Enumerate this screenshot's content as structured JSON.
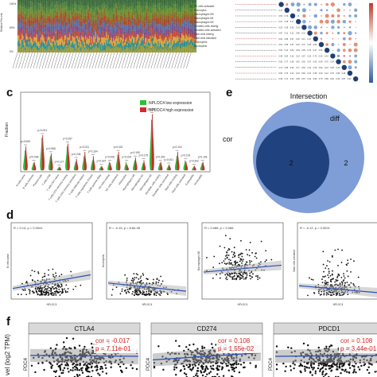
{
  "panels": {
    "c": "c",
    "d": "d",
    "e": "e",
    "f": "f"
  },
  "panel_a": {
    "ylabel": "Relative Percent",
    "ticks": [
      "100%",
      "50%",
      "0%"
    ],
    "legend": [
      "NK cells activated",
      "Monocytes",
      "Macrophages M0",
      "Macrophages M1",
      "Macrophages M2",
      "Dendritic cells resting",
      "Dendritic cells activated",
      "Mast cells resting",
      "Mast cells activated",
      "Eosinophils",
      "Neutrophils"
    ],
    "stack_colors": [
      "#3c6b3a",
      "#4a7f3e",
      "#6b8f2f",
      "#8c6b2a",
      "#a64a2a",
      "#5a6fa0",
      "#7a4f8a",
      "#c04a3a",
      "#d9a23a",
      "#2f8f8f",
      "#9a9a3a"
    ]
  },
  "panel_c": {
    "ylabel": "Fraction",
    "legend": [
      "NPLOC4 low expression",
      "NPLOC4 high expression"
    ],
    "legend_colors": [
      "#2fbf2f",
      "#d42a2a"
    ],
    "pvalues": [
      "p=0.005",
      "p=0.946",
      "p=0.001",
      "p=0.968",
      "p=0.127",
      "p=0.297",
      "p=0.246",
      "p=0.021",
      "p=0.164",
      "p=0.187",
      "p=0.008",
      "p=0.001",
      "p=0.024",
      "p=0.199",
      "p=0.175",
      "p=0.209",
      "p=0.302",
      "p=0.001",
      "p=0.104",
      "p=0.100",
      "p=0.302",
      "p=0.106"
    ],
    "categories": [
      "B cells naive",
      "B cells memory",
      "Plasma cells",
      "T cells CD8",
      "T cells CD4 naive",
      "T cells CD4 memory resting",
      "T cells CD4 memory activated",
      "T cells follicular helper",
      "T cells regulatory (Tregs)",
      "T cells gamma delta",
      "NK cells resting",
      "NK cells activated",
      "Monocytes",
      "Macrophages M0",
      "Macrophages M1",
      "Macrophages M2",
      "Dendritic cells resting",
      "Dendritic cells activated",
      "Mast cells resting",
      "Mast cells activated",
      "Eosinophils",
      "Neutrophils"
    ],
    "low_heights": [
      0.28,
      0.1,
      0.46,
      0.2,
      0.04,
      0.34,
      0.12,
      0.2,
      0.14,
      0.05,
      0.12,
      0.22,
      0.12,
      0.14,
      0.1,
      0.72,
      0.1,
      0.06,
      0.2,
      0.14,
      0.05,
      0.1
    ],
    "high_heights": [
      0.34,
      0.12,
      0.5,
      0.24,
      0.05,
      0.38,
      0.16,
      0.26,
      0.2,
      0.06,
      0.1,
      0.26,
      0.08,
      0.18,
      0.14,
      0.8,
      0.12,
      0.08,
      0.26,
      0.12,
      0.06,
      0.12
    ]
  },
  "panel_e": {
    "title": "Intersection",
    "outer_label": "cor",
    "inner_label": "diff",
    "inner_count": "2",
    "outer_count": "2",
    "outer_color": "#7f9dd6",
    "inner_color": "#20427f"
  },
  "panel_d": {
    "xlabel": "NPLOC4",
    "plots": [
      {
        "stat": "R = 0.14, p = 0.0041",
        "ylabel": "B cells naive",
        "trend": [
          0.12,
          0.32
        ]
      },
      {
        "stat": "R = -0.15, p = 6.6e-05",
        "ylabel": "Neutrophils",
        "trend": [
          0.2,
          0.08
        ]
      },
      {
        "stat": "R = 0.086, p = 0.066",
        "ylabel": "Macrophages M0",
        "trend": [
          0.36,
          0.46
        ]
      },
      {
        "stat": "R = -0.12, p = 0.0021",
        "ylabel": "Mast cells activated",
        "trend": [
          0.16,
          0.06
        ]
      }
    ],
    "line_color": "#2b4fb3",
    "band_color": "#b8b8b8"
  },
  "panel_f": {
    "ylabel": "vel (log2 TPM)",
    "xtick_label": "PDC4",
    "facets": [
      {
        "title": "CTLA4",
        "cor": "cor = -0.017",
        "p": "p = 7.11e-01",
        "trend": [
          0.52,
          0.5
        ]
      },
      {
        "title": "CD274",
        "cor": "cor = 0.108",
        "p": "p = 1.55e-02",
        "trend": [
          0.42,
          0.58
        ]
      },
      {
        "title": "PDCD1",
        "cor": "cor = 0.108",
        "p": "p = 3.44e-01",
        "trend": [
          0.5,
          0.52
        ]
      }
    ]
  }
}
